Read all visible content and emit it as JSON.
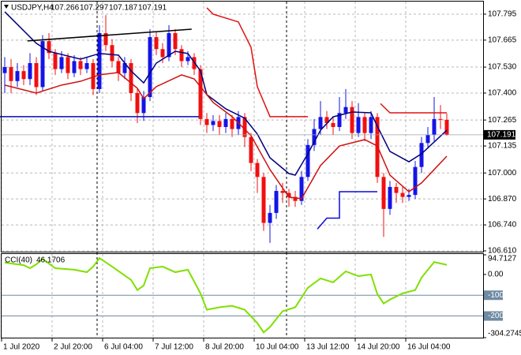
{
  "chart_data": [
    {
      "type": "candlestick",
      "title": "USDJPY,H4",
      "open": [
        107.5,
        107.53,
        107.46,
        107.51,
        107.47,
        107.55,
        107.43,
        107.66,
        107.6,
        107.52,
        107.58,
        107.5,
        107.56,
        107.52,
        107.55,
        107.42,
        107.7,
        107.64,
        107.56,
        107.5,
        107.55,
        107.4,
        107.3,
        107.38,
        107.68,
        107.62,
        107.58,
        107.7,
        107.62,
        107.56,
        107.58,
        107.52,
        107.27,
        107.24,
        107.26,
        107.23,
        107.27,
        107.22,
        107.28,
        107.18,
        107.05,
        106.98,
        106.75,
        106.8,
        106.91,
        106.9,
        106.88,
        106.86,
        106.98,
        107.14,
        107.22,
        107.28,
        107.25,
        107.23,
        107.3,
        107.33,
        107.2,
        107.28,
        107.2,
        107.28,
        106.98,
        106.82,
        106.93,
        106.9,
        106.88,
        106.89,
        107.03,
        107.15,
        107.19,
        107.27,
        107.266
      ],
      "high": [
        107.58,
        107.57,
        107.55,
        107.54,
        107.6,
        107.58,
        107.69,
        107.7,
        107.62,
        107.61,
        107.6,
        107.59,
        107.58,
        107.58,
        107.57,
        107.74,
        107.79,
        107.67,
        107.58,
        107.58,
        107.57,
        107.42,
        107.41,
        107.72,
        107.71,
        107.65,
        107.74,
        107.72,
        107.64,
        107.61,
        107.6,
        107.54,
        107.3,
        107.29,
        107.29,
        107.3,
        107.29,
        107.31,
        107.3,
        107.2,
        107.07,
        107.0,
        106.84,
        106.94,
        106.95,
        106.92,
        106.91,
        107.01,
        107.17,
        107.27,
        107.36,
        107.31,
        107.28,
        107.38,
        107.42,
        107.36,
        107.35,
        107.3,
        107.31,
        107.3,
        107.0,
        106.96,
        106.95,
        106.93,
        106.92,
        107.06,
        107.18,
        107.23,
        107.38,
        107.34,
        107.297
      ],
      "low": [
        107.4,
        107.4,
        107.43,
        107.44,
        107.44,
        107.39,
        107.41,
        107.57,
        107.49,
        107.5,
        107.47,
        107.48,
        107.49,
        107.5,
        107.39,
        107.4,
        107.61,
        107.53,
        107.46,
        107.47,
        107.36,
        107.25,
        107.26,
        107.36,
        107.59,
        107.55,
        107.56,
        107.59,
        107.53,
        107.54,
        107.49,
        107.24,
        107.2,
        107.21,
        107.19,
        107.2,
        107.18,
        107.19,
        107.13,
        107.01,
        106.9,
        106.71,
        106.65,
        106.77,
        106.85,
        106.83,
        106.83,
        106.84,
        106.96,
        107.11,
        107.19,
        107.22,
        107.19,
        107.21,
        107.27,
        107.17,
        107.18,
        107.16,
        107.17,
        106.95,
        106.68,
        106.79,
        106.85,
        106.85,
        106.86,
        106.87,
        107.0,
        107.13,
        107.16,
        107.22,
        107.187
      ],
      "close": [
        107.53,
        107.46,
        107.51,
        107.47,
        107.55,
        107.43,
        107.66,
        107.6,
        107.52,
        107.58,
        107.5,
        107.56,
        107.52,
        107.55,
        107.42,
        107.7,
        107.64,
        107.56,
        107.5,
        107.55,
        107.4,
        107.3,
        107.38,
        107.68,
        107.62,
        107.58,
        107.7,
        107.62,
        107.56,
        107.58,
        107.52,
        107.27,
        107.24,
        107.26,
        107.23,
        107.27,
        107.22,
        107.28,
        107.18,
        107.05,
        106.98,
        106.75,
        106.8,
        106.91,
        106.9,
        106.88,
        106.86,
        106.98,
        107.14,
        107.22,
        107.28,
        107.25,
        107.23,
        107.3,
        107.33,
        107.2,
        107.28,
        107.2,
        107.28,
        106.98,
        106.82,
        106.93,
        106.9,
        106.88,
        106.89,
        107.03,
        107.15,
        107.19,
        107.27,
        107.266,
        107.191
      ],
      "up_color": "#1414e6",
      "down_color": "#f01010",
      "ylim": [
        106.61,
        107.858
      ],
      "yticks": [
        107.795,
        107.665,
        {
          "value": 107.53,
          "label": "107.530"
        },
        {
          "value": 107.4,
          "label": "107.400"
        },
        107.265,
        107.135,
        {
          "value": 107,
          "label": "107.000"
        },
        {
          "value": 106.87,
          "label": "106.870"
        },
        {
          "value": 106.74,
          "label": "106.740"
        },
        {
          "value": 106.61,
          "label": "106.610"
        }
      ],
      "xticks": [
        {
          "value": -0.5,
          "label": "1 Jul 2020"
        },
        {
          "value": 7.5,
          "label": "2 Jul 20:00"
        },
        {
          "value": 15.5,
          "label": "6 Jul 04:00"
        },
        {
          "value": 23.5,
          "label": "7 Jul 12:00"
        },
        {
          "value": 31.5,
          "label": "8 Jul 20:00"
        },
        {
          "value": 39.5,
          "label": "10 Jul 04:00"
        },
        {
          "value": 47.5,
          "label": "13 Jul 12:00"
        },
        {
          "value": 55.5,
          "label": "14 Jul 20:00"
        },
        {
          "value": 63.5,
          "label": "16 Jul 04:00"
        }
      ],
      "grid": true,
      "overlays": [
        {
          "color": "#000080",
          "x": [
            0,
            5,
            7,
            12,
            15,
            18,
            20,
            22,
            24,
            27,
            29,
            31,
            32,
            35,
            38,
            40,
            42,
            45,
            46,
            48,
            50,
            52,
            55,
            58,
            59,
            61,
            64,
            66,
            70
          ],
          "values": [
            107.807,
            107.649,
            107.609,
            107.57,
            107.598,
            107.59,
            107.511,
            107.451,
            107.55,
            107.609,
            107.598,
            107.511,
            107.392,
            107.321,
            107.274,
            107.195,
            107.076,
            106.997,
            106.989,
            107.096,
            107.214,
            107.281,
            107.305,
            107.301,
            107.234,
            107.108,
            107.056,
            107.096,
            107.214
          ]
        },
        {
          "color": "#d01010",
          "x": [
            0,
            5,
            9,
            12,
            15,
            18,
            21,
            22,
            24,
            28,
            30,
            33,
            36,
            39,
            42,
            45,
            47,
            50,
            53,
            57,
            59,
            61,
            64,
            66,
            68,
            70
          ],
          "values": [
            107.44,
            107.4,
            107.44,
            107.459,
            107.491,
            107.503,
            107.424,
            107.372,
            107.432,
            107.491,
            107.471,
            107.353,
            107.282,
            107.187,
            107.017,
            106.879,
            106.871,
            107.037,
            107.135,
            107.167,
            107.135,
            106.989,
            106.906,
            106.95,
            107.017,
            107.084
          ]
        },
        {
          "color": "#e01010",
          "x": [
            32,
            33,
            37,
            39,
            40,
            42,
            48,
            null,
            59.5,
            61,
            70
          ],
          "values": [
            107.827,
            107.795,
            107.756,
            107.629,
            107.432,
            107.282,
            107.282,
            null,
            107.347,
            107.301,
            107.301
          ]
        },
        {
          "color": "#0a0adc",
          "x": [
            49.5,
            51,
            53,
            53,
            59
          ],
          "values": [
            106.719,
            106.774,
            106.774,
            106.906,
            106.906
          ]
        },
        {
          "color": "#0a0ab4",
          "x": [
            -0.75,
            30.75
          ],
          "values": [
            107.282,
            107.282
          ]
        },
        {
          "color": "#000000",
          "x": [
            3.6,
            29.6
          ],
          "values": [
            107.661,
            107.72
          ]
        }
      ]
    },
    {
      "type": "line",
      "title": "CCI(40)",
      "color": "#7fe000",
      "x": [
        0,
        3,
        4,
        5,
        6,
        8,
        11,
        13,
        14,
        15,
        17,
        20,
        21,
        22,
        23,
        25,
        27,
        29,
        31,
        32,
        34,
        36,
        38,
        40,
        41,
        42,
        44,
        46,
        48,
        50,
        52,
        54,
        56,
        58,
        59,
        60,
        61,
        63,
        65,
        66,
        68,
        70
      ],
      "values": [
        57,
        45,
        30,
        49,
        75,
        30,
        23,
        11,
        38,
        79,
        38,
        -26,
        -75,
        -53,
        30,
        38,
        11,
        23,
        -91,
        -170,
        -158,
        -151,
        -170,
        -234,
        -279,
        -253,
        -177,
        -158,
        -64,
        -19,
        -38,
        15,
        -8,
        0,
        -94,
        -140,
        -121,
        -91,
        -75,
        -15,
        60,
        46.1706
      ],
      "ylim": [
        -304.2745,
        94.7127
      ],
      "yticks": [
        94.7127,
        {
          "value": 0,
          "label": "0.00"
        },
        -100,
        -200,
        -304.2745
      ],
      "levels": [
        -100,
        -200
      ],
      "level_color": "#6f8aa3"
    }
  ]
}
